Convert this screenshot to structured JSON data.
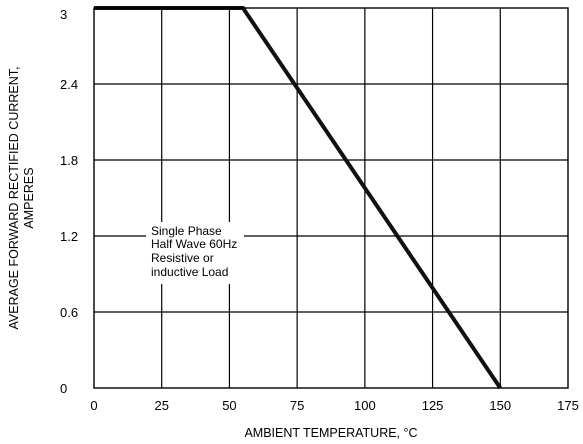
{
  "chart_data": {
    "type": "line",
    "title": "",
    "xlabel": "AMBIENT TEMPERATURE,  °C",
    "ylabel_lines": [
      "AVERAGE FORWARD RECTIFIED CURRENT,",
      "AMPERES"
    ],
    "xlim": [
      0,
      175
    ],
    "ylim": [
      0,
      3
    ],
    "x_ticks": [
      0,
      25,
      50,
      75,
      100,
      125,
      150,
      175
    ],
    "y_ticks": [
      0,
      0.6,
      1.2,
      1.8,
      2.4,
      3
    ],
    "x_tick_labels": [
      "0",
      "25",
      "50",
      "75",
      "100",
      "125",
      "150",
      "175"
    ],
    "y_tick_labels": [
      "0",
      "0.6",
      "1.2",
      "1.8",
      "2.4",
      "3"
    ],
    "grid": true,
    "series": [
      {
        "x": [
          0,
          55,
          150
        ],
        "y": [
          3.0,
          3.0,
          0.0
        ]
      }
    ],
    "annotation_lines": [
      "Single Phase",
      "Half Wave 60Hz",
      "Resistive or",
      "inductive Load"
    ],
    "line_color": "#111111",
    "grid_color": "#000000"
  }
}
